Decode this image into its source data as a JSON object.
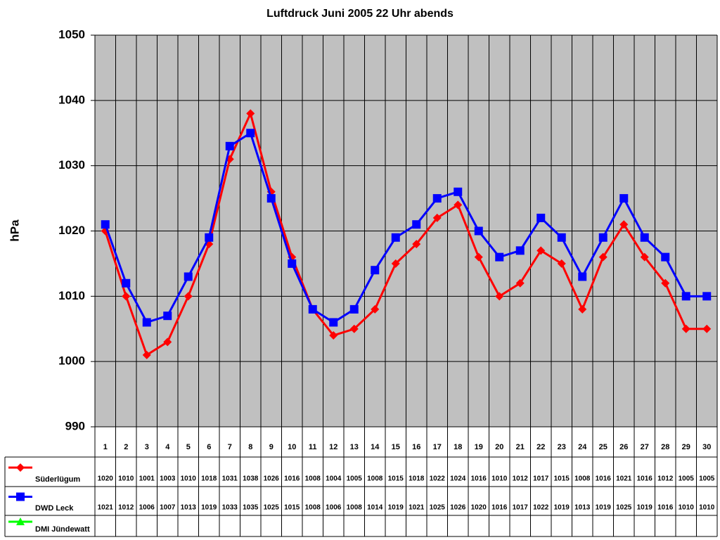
{
  "chart_data": {
    "type": "line",
    "title": "Luftdruck Juni 2005 22 Uhr abends",
    "y_label": "hPa",
    "categories": [
      "1",
      "2",
      "3",
      "4",
      "5",
      "6",
      "7",
      "8",
      "9",
      "10",
      "11",
      "12",
      "13",
      "14",
      "15",
      "16",
      "17",
      "18",
      "19",
      "20",
      "21",
      "22",
      "23",
      "24",
      "25",
      "26",
      "27",
      "28",
      "29",
      "30"
    ],
    "series": [
      {
        "name": "Süderlügum",
        "color": "#ff0000",
        "marker": "diamond",
        "values": [
          1020,
          1010,
          1001,
          1003,
          1010,
          1018,
          1031,
          1038,
          1026,
          1016,
          1008,
          1004,
          1005,
          1008,
          1015,
          1018,
          1022,
          1024,
          1016,
          1010,
          1012,
          1017,
          1015,
          1008,
          1016,
          1021,
          1016,
          1012,
          1005,
          1005
        ]
      },
      {
        "name": "DWD Leck",
        "color": "#0000ff",
        "marker": "square",
        "values": [
          1021,
          1012,
          1006,
          1007,
          1013,
          1019,
          1033,
          1035,
          1025,
          1015,
          1008,
          1006,
          1008,
          1014,
          1019,
          1021,
          1025,
          1026,
          1020,
          1016,
          1017,
          1022,
          1019,
          1013,
          1019,
          1025,
          1019,
          1016,
          1010,
          1010
        ]
      },
      {
        "name": "DMI Jündewatt",
        "color": "#00ff00",
        "marker": "triangle",
        "values": [
          null,
          null,
          null,
          null,
          null,
          null,
          null,
          null,
          null,
          null,
          null,
          null,
          null,
          null,
          null,
          null,
          null,
          null,
          null,
          null,
          null,
          null,
          null,
          null,
          null,
          null,
          null,
          null,
          null,
          null
        ]
      }
    ],
    "ylim": [
      990,
      1050
    ],
    "yticks": [
      990,
      1000,
      1010,
      1020,
      1030,
      1040,
      1050
    ],
    "grid": true,
    "data_table": true
  }
}
